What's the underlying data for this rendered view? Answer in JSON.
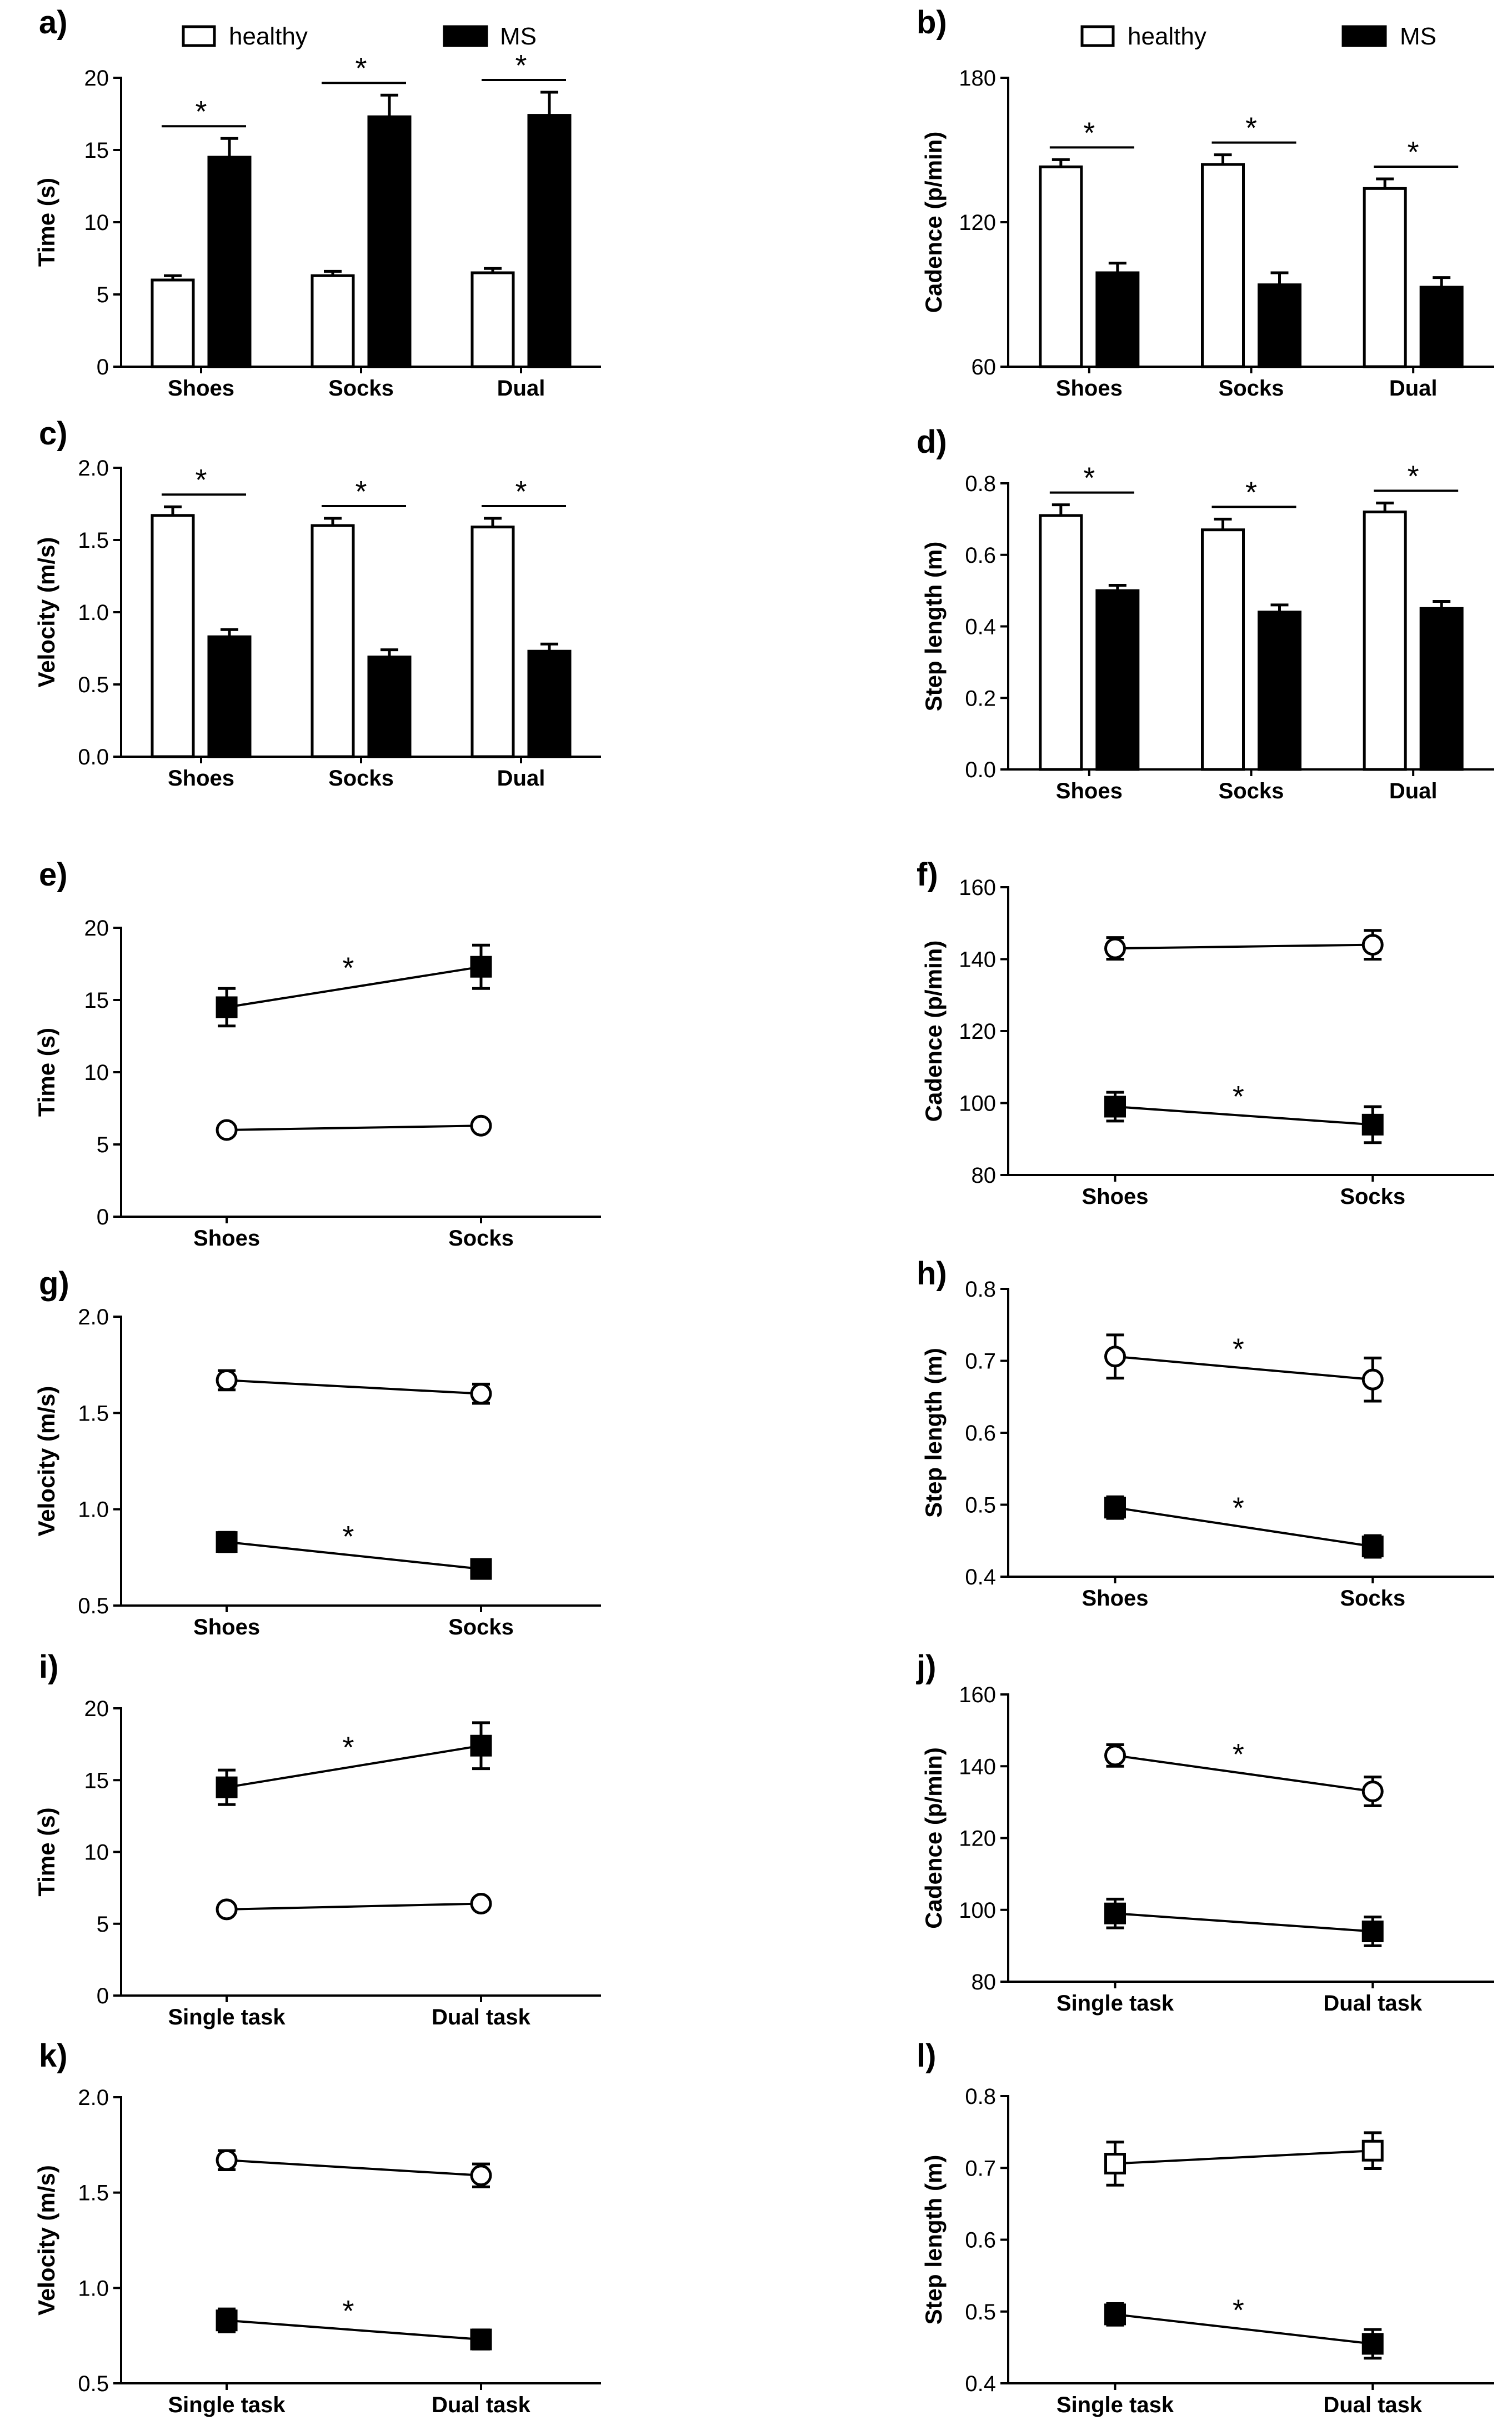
{
  "legend": {
    "healthy": "healthy",
    "ms": "MS"
  },
  "chart_data": [
    {
      "id": "a",
      "panel_label": "a)",
      "type": "bar",
      "ylabel": "Time (s)",
      "ylim": [
        0,
        20
      ],
      "yticks": [
        "0",
        "5",
        "10",
        "15",
        "20"
      ],
      "categories": [
        "Shoes",
        "Socks",
        "Dual"
      ],
      "series": [
        {
          "name": "healthy",
          "values": [
            6.0,
            6.3,
            6.5
          ],
          "errors": [
            0.3,
            0.3,
            0.3
          ]
        },
        {
          "name": "MS",
          "values": [
            14.5,
            17.3,
            17.4
          ],
          "errors": [
            1.3,
            1.5,
            1.6
          ]
        }
      ],
      "significance": [
        {
          "category": 0,
          "label": "*"
        },
        {
          "category": 1,
          "label": "*"
        },
        {
          "category": 2,
          "label": "*"
        }
      ]
    },
    {
      "id": "b",
      "panel_label": "b)",
      "type": "bar",
      "ylabel": "Cadence (p/min)",
      "ylim": [
        60,
        180
      ],
      "yticks": [
        "60",
        "120",
        "180"
      ],
      "categories": [
        "Shoes",
        "Socks",
        "Dual"
      ],
      "series": [
        {
          "name": "healthy",
          "values": [
            143,
            144,
            134
          ],
          "errors": [
            3,
            4,
            4
          ]
        },
        {
          "name": "MS",
          "values": [
            99,
            94,
            93
          ],
          "errors": [
            4,
            5,
            4
          ]
        }
      ],
      "significance": [
        {
          "category": 0,
          "label": "*"
        },
        {
          "category": 1,
          "label": "*"
        },
        {
          "category": 2,
          "label": "*"
        }
      ]
    },
    {
      "id": "c",
      "panel_label": "c)",
      "type": "bar",
      "ylabel": "Velocity (m/s)",
      "ylim": [
        0,
        2.0
      ],
      "yticks": [
        "0.0",
        "0.5",
        "1.0",
        "1.5",
        "2.0"
      ],
      "categories": [
        "Shoes",
        "Socks",
        "Dual"
      ],
      "series": [
        {
          "name": "healthy",
          "values": [
            1.67,
            1.6,
            1.59
          ],
          "errors": [
            0.06,
            0.05,
            0.06
          ]
        },
        {
          "name": "MS",
          "values": [
            0.83,
            0.69,
            0.73
          ],
          "errors": [
            0.05,
            0.05,
            0.05
          ]
        }
      ],
      "significance": [
        {
          "category": 0,
          "label": "*"
        },
        {
          "category": 1,
          "label": "*"
        },
        {
          "category": 2,
          "label": "*"
        }
      ]
    },
    {
      "id": "d",
      "panel_label": "d)",
      "type": "bar",
      "ylabel": "Step length (m)",
      "ylim": [
        0,
        0.8
      ],
      "yticks": [
        "0.0",
        "0.2",
        "0.4",
        "0.6",
        "0.8"
      ],
      "categories": [
        "Shoes",
        "Socks",
        "Dual"
      ],
      "series": [
        {
          "name": "healthy",
          "values": [
            0.71,
            0.67,
            0.72
          ],
          "errors": [
            0.03,
            0.03,
            0.025
          ]
        },
        {
          "name": "MS",
          "values": [
            0.5,
            0.44,
            0.45
          ],
          "errors": [
            0.015,
            0.02,
            0.02
          ]
        }
      ],
      "significance": [
        {
          "category": 0,
          "label": "*"
        },
        {
          "category": 1,
          "label": "*"
        },
        {
          "category": 2,
          "label": "*"
        }
      ]
    },
    {
      "id": "e",
      "panel_label": "e)",
      "type": "line",
      "ylabel": "Time (s)",
      "ylim": [
        0,
        20
      ],
      "yticks": [
        "0",
        "5",
        "10",
        "15",
        "20"
      ],
      "categories": [
        "Shoes",
        "Socks"
      ],
      "series": [
        {
          "name": "MS",
          "marker": "filled-square",
          "values": [
            14.5,
            17.3
          ],
          "errors": [
            1.3,
            1.5
          ]
        },
        {
          "name": "healthy",
          "marker": "open-circle",
          "values": [
            6.0,
            6.3
          ],
          "errors": [
            0.3,
            0.3
          ]
        }
      ],
      "significance": [
        {
          "series": 0,
          "label": "*"
        }
      ]
    },
    {
      "id": "f",
      "panel_label": "f)",
      "type": "line",
      "ylabel": "Cadence (p/min)",
      "ylim": [
        80,
        160
      ],
      "yticks": [
        "80",
        "100",
        "120",
        "140",
        "160"
      ],
      "categories": [
        "Shoes",
        "Socks"
      ],
      "series": [
        {
          "name": "healthy",
          "marker": "open-circle",
          "values": [
            143,
            144
          ],
          "errors": [
            3,
            4
          ]
        },
        {
          "name": "MS",
          "marker": "filled-square",
          "values": [
            99,
            94
          ],
          "errors": [
            4,
            5
          ]
        }
      ],
      "significance": [
        {
          "series": 1,
          "label": "*"
        }
      ]
    },
    {
      "id": "g",
      "panel_label": "g)",
      "type": "line",
      "ylabel": "Velocity (m/s)",
      "ylim": [
        0.5,
        2.0
      ],
      "yticks": [
        "0.5",
        "1.0",
        "1.5",
        "2.0"
      ],
      "categories": [
        "Shoes",
        "Socks"
      ],
      "series": [
        {
          "name": "healthy",
          "marker": "open-circle",
          "values": [
            1.67,
            1.6
          ],
          "errors": [
            0.05,
            0.05
          ]
        },
        {
          "name": "MS",
          "marker": "filled-square",
          "values": [
            0.83,
            0.69
          ],
          "errors": [
            0.05,
            0.03
          ]
        }
      ],
      "significance": [
        {
          "series": 1,
          "label": "*"
        }
      ]
    },
    {
      "id": "h",
      "panel_label": "h)",
      "type": "line",
      "ylabel": "Step length (m)",
      "ylim": [
        0.4,
        0.8
      ],
      "yticks": [
        "0.4",
        "0.5",
        "0.6",
        "0.7",
        "0.8"
      ],
      "categories": [
        "Shoes",
        "Socks"
      ],
      "series": [
        {
          "name": "healthy",
          "marker": "open-circle",
          "values": [
            0.706,
            0.674
          ],
          "errors": [
            0.03,
            0.03
          ]
        },
        {
          "name": "MS",
          "marker": "filled-square",
          "values": [
            0.496,
            0.442
          ],
          "errors": [
            0.015,
            0.015
          ]
        }
      ],
      "significance": [
        {
          "series": 0,
          "label": "*"
        },
        {
          "series": 1,
          "label": "*"
        }
      ]
    },
    {
      "id": "i",
      "panel_label": "i)",
      "type": "line",
      "ylabel": "Time (s)",
      "ylim": [
        0,
        20
      ],
      "yticks": [
        "0",
        "5",
        "10",
        "15",
        "20"
      ],
      "categories": [
        "Single task",
        "Dual task"
      ],
      "series": [
        {
          "name": "MS",
          "marker": "filled-square",
          "values": [
            14.5,
            17.4
          ],
          "errors": [
            1.2,
            1.6
          ]
        },
        {
          "name": "healthy",
          "marker": "open-circle",
          "values": [
            6.0,
            6.4
          ],
          "errors": [
            0.3,
            0.3
          ]
        }
      ],
      "significance": [
        {
          "series": 0,
          "label": "*"
        }
      ]
    },
    {
      "id": "j",
      "panel_label": "j)",
      "type": "line",
      "ylabel": "Cadence (p/min)",
      "ylim": [
        80,
        160
      ],
      "yticks": [
        "80",
        "100",
        "120",
        "140",
        "160"
      ],
      "categories": [
        "Single task",
        "Dual task"
      ],
      "series": [
        {
          "name": "healthy",
          "marker": "open-circle",
          "values": [
            143,
            133
          ],
          "errors": [
            3,
            4
          ]
        },
        {
          "name": "MS",
          "marker": "filled-square",
          "values": [
            99,
            94
          ],
          "errors": [
            4,
            4
          ]
        }
      ],
      "significance": [
        {
          "series": 0,
          "label": "*"
        }
      ]
    },
    {
      "id": "k",
      "panel_label": "k)",
      "type": "line",
      "ylabel": "Velocity (m/s)",
      "ylim": [
        0.5,
        2.0
      ],
      "yticks": [
        "0.5",
        "1.0",
        "1.5",
        "2.0"
      ],
      "categories": [
        "Single task",
        "Dual task"
      ],
      "series": [
        {
          "name": "healthy",
          "marker": "open-circle",
          "values": [
            1.67,
            1.59
          ],
          "errors": [
            0.05,
            0.06
          ]
        },
        {
          "name": "MS",
          "marker": "filled-square",
          "values": [
            0.83,
            0.73
          ],
          "errors": [
            0.06,
            0.05
          ]
        }
      ],
      "significance": [
        {
          "series": 1,
          "label": "*"
        }
      ]
    },
    {
      "id": "l",
      "panel_label": "l)",
      "type": "line",
      "ylabel": "Step length (m)",
      "ylim": [
        0.4,
        0.8
      ],
      "yticks": [
        "0.4",
        "0.5",
        "0.6",
        "0.7",
        "0.8"
      ],
      "categories": [
        "Single task",
        "Dual task"
      ],
      "series": [
        {
          "name": "healthy",
          "marker": "open-square",
          "values": [
            0.706,
            0.724
          ],
          "errors": [
            0.03,
            0.025
          ]
        },
        {
          "name": "MS",
          "marker": "filled-square",
          "values": [
            0.496,
            0.455
          ],
          "errors": [
            0.015,
            0.02
          ]
        }
      ],
      "significance": [
        {
          "series": 1,
          "label": "*"
        }
      ]
    }
  ]
}
